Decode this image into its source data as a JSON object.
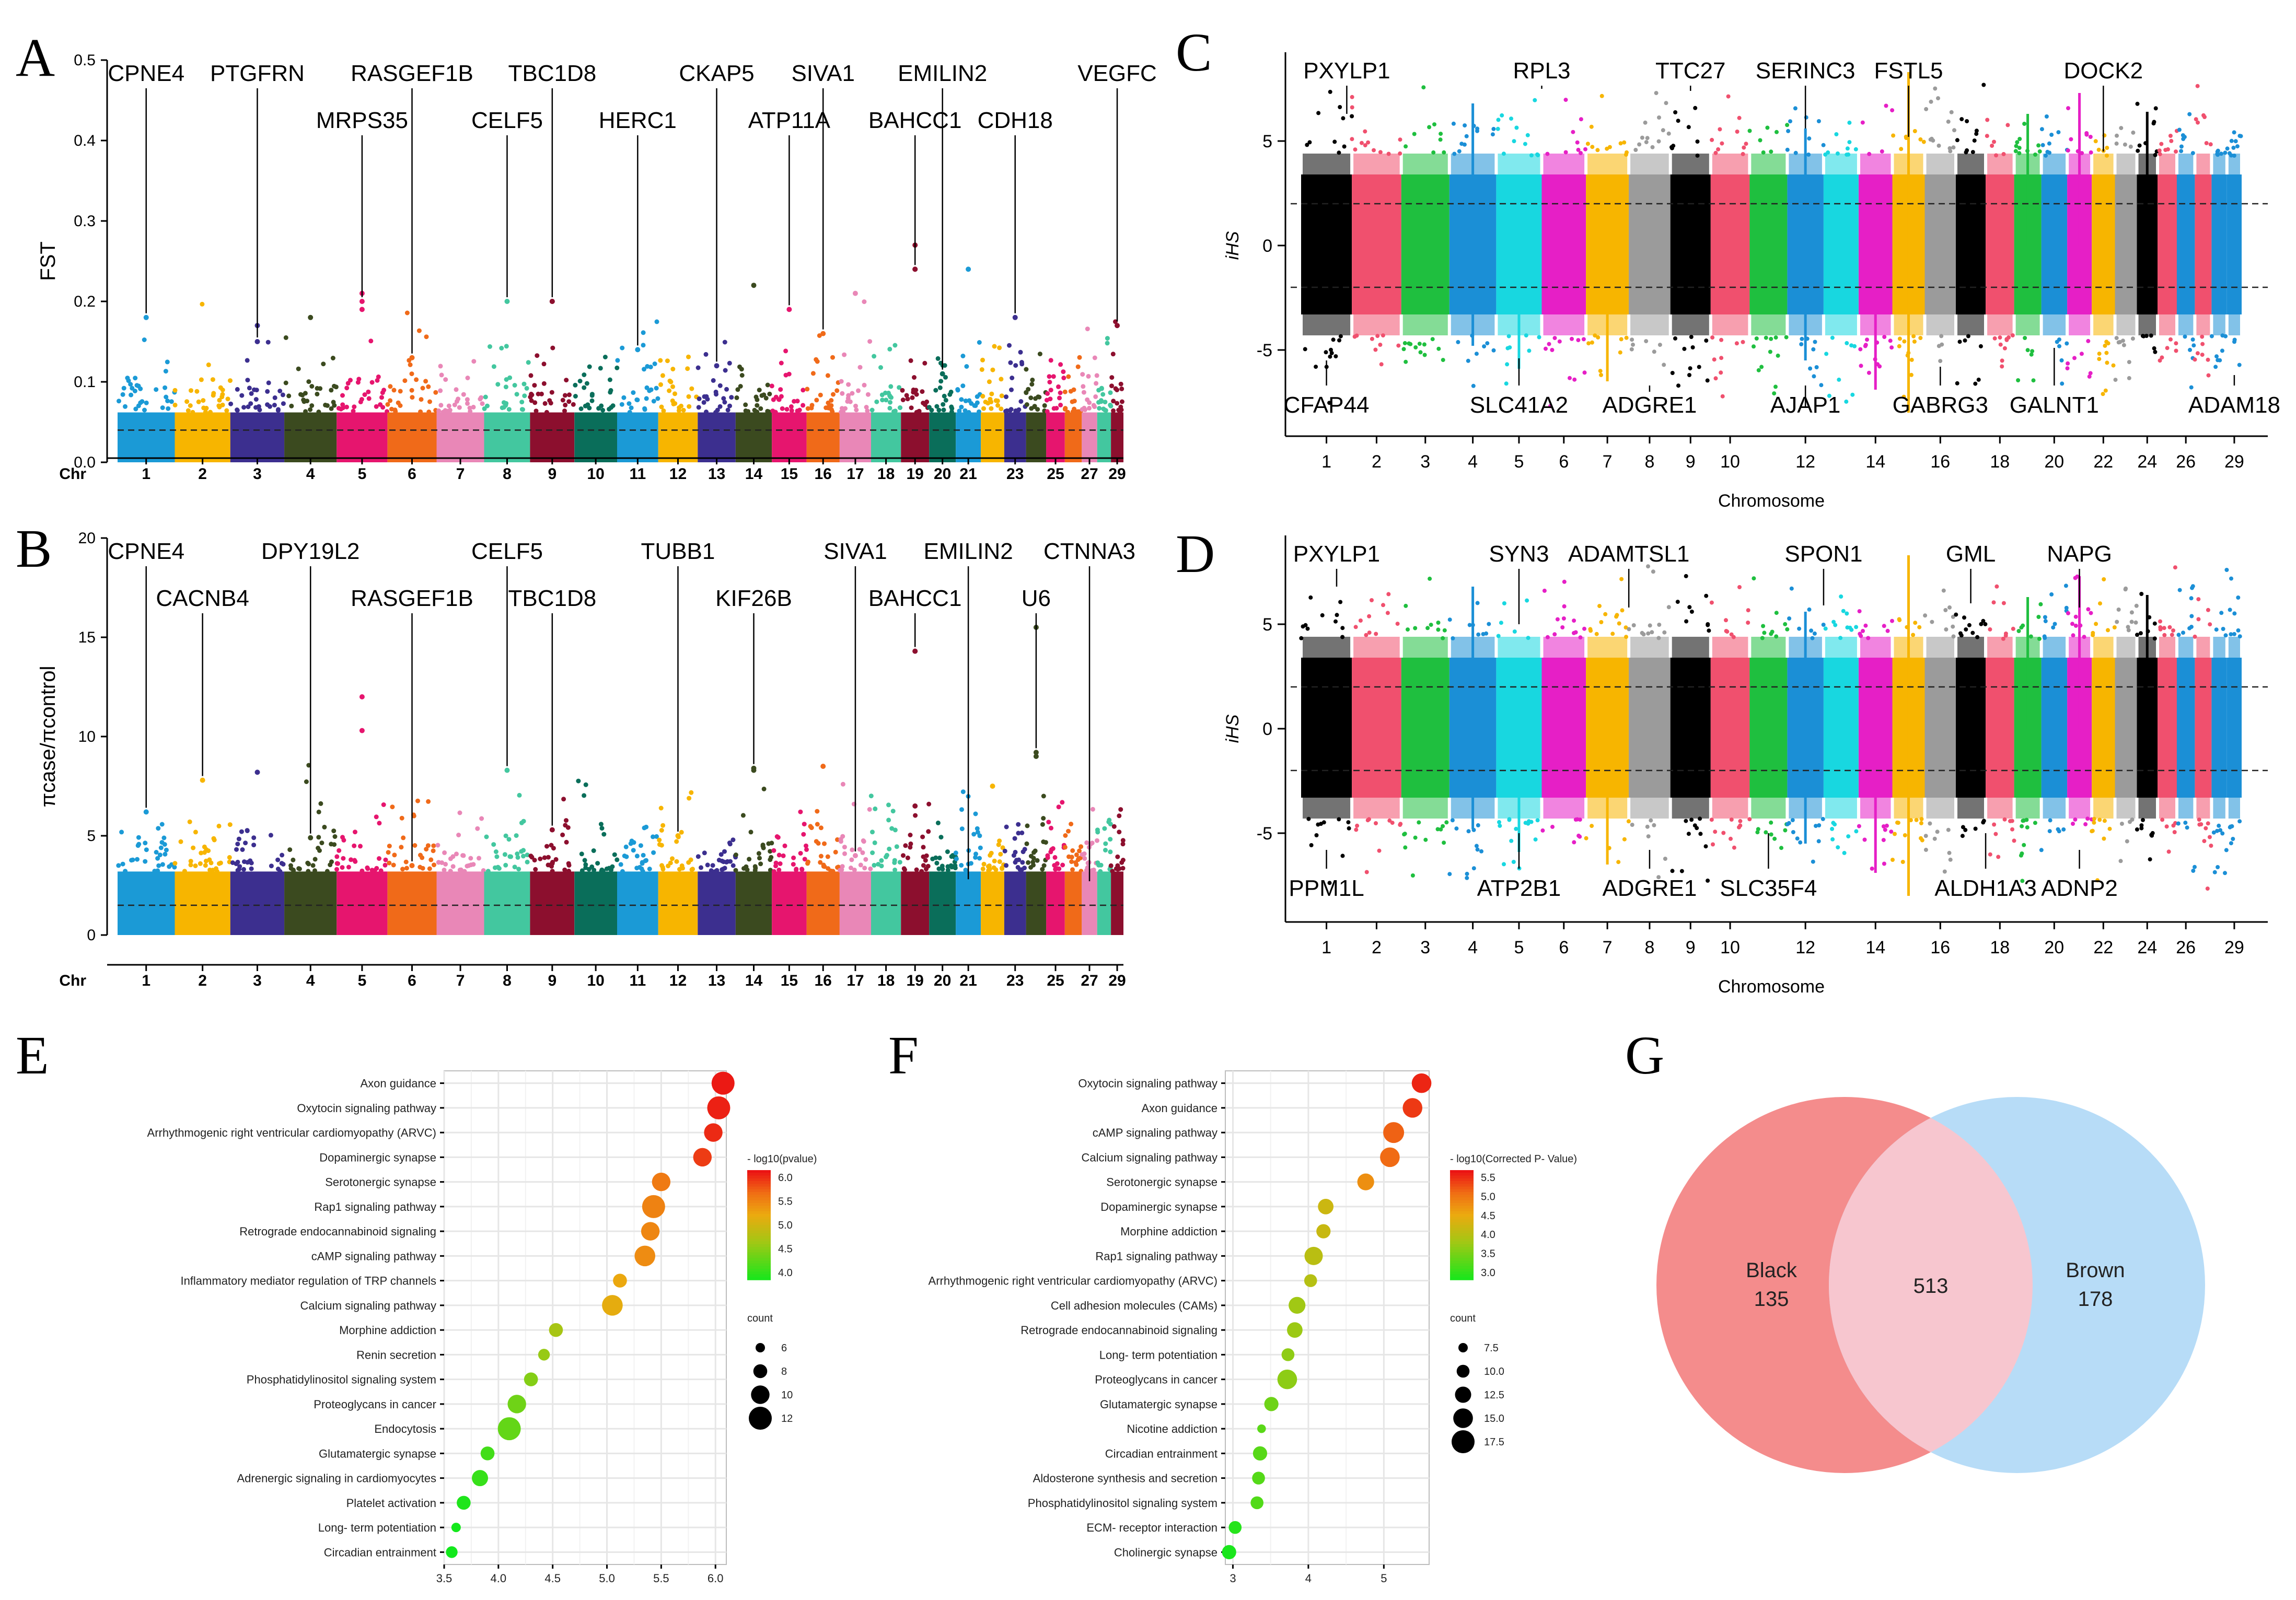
{
  "panels": {
    "A": "A",
    "B": "B",
    "C": "C",
    "D": "D",
    "E": "E",
    "F": "F",
    "G": "G"
  },
  "chart_data": [
    {
      "id": "A",
      "type": "scatter",
      "subtype": "manhattan",
      "ylabel": "FST",
      "xlabel_prefix": "Chr",
      "ylim": [
        0,
        0.5
      ],
      "yticks": [
        0.0,
        0.1,
        0.2,
        0.3,
        0.4,
        0.5
      ],
      "ytick_labels": [
        "0.0",
        "0.1",
        "0.2",
        "0.3",
        "0.4",
        "0.5"
      ],
      "threshold": 0.04,
      "chromosomes": [
        "1",
        "2",
        "3",
        "4",
        "5",
        "6",
        "7",
        "8",
        "9",
        "10",
        "11",
        "12",
        "13",
        "14",
        "15",
        "16",
        "17",
        "18",
        "19",
        "20",
        "21",
        "23",
        "25",
        "27",
        "29"
      ],
      "genes": [
        {
          "name": "CPNE4",
          "chr": 1,
          "value": 0.18,
          "row": 1
        },
        {
          "name": "PTGFRN",
          "chr": 3,
          "value": 0.15,
          "row": 1
        },
        {
          "name": "MRPS35",
          "chr": 5,
          "value": 0.2,
          "row": 2
        },
        {
          "name": "RASGEF1B",
          "chr": 6,
          "value": 0.13,
          "row": 1
        },
        {
          "name": "CELF5",
          "chr": 8,
          "value": 0.2,
          "row": 2
        },
        {
          "name": "TBC1D8",
          "chr": 9,
          "value": 0.2,
          "row": 1
        },
        {
          "name": "HERC1",
          "chr": 11,
          "value": 0.14,
          "row": 2
        },
        {
          "name": "CKAP5",
          "chr": 13,
          "value": 0.12,
          "row": 1
        },
        {
          "name": "ATP11A",
          "chr": 15,
          "value": 0.19,
          "row": 2
        },
        {
          "name": "SIVA1",
          "chr": 16,
          "value": 0.16,
          "row": 1
        },
        {
          "name": "BAHCC1",
          "chr": 19,
          "value": 0.24,
          "row": 2
        },
        {
          "name": "EMILIN2",
          "chr": 20,
          "value": 0.11,
          "row": 1
        },
        {
          "name": "CDH18",
          "chr": 23,
          "value": 0.18,
          "row": 2
        },
        {
          "name": "VEGFC",
          "chr": 29,
          "value": 0.17,
          "row": 1
        }
      ]
    },
    {
      "id": "B",
      "type": "scatter",
      "subtype": "manhattan",
      "ylabel": "πcase/πcontrol",
      "xlabel_prefix": "Chr",
      "ylim": [
        0,
        20
      ],
      "yticks": [
        0,
        5,
        10,
        15,
        20
      ],
      "ytick_labels": [
        "0",
        "5",
        "10",
        "15",
        "20"
      ],
      "threshold": 1.5,
      "chromosomes": [
        "1",
        "2",
        "3",
        "4",
        "5",
        "6",
        "7",
        "8",
        "9",
        "10",
        "11",
        "12",
        "13",
        "14",
        "15",
        "16",
        "17",
        "18",
        "19",
        "20",
        "21",
        "23",
        "25",
        "27",
        "29"
      ],
      "genes": [
        {
          "name": "CPNE4",
          "chr": 1,
          "value": 6.2,
          "row": 1
        },
        {
          "name": "CACNB4",
          "chr": 2,
          "value": 7.8,
          "row": 2
        },
        {
          "name": "DPY19L2",
          "chr": 4,
          "value": 4.9,
          "row": 1
        },
        {
          "name": "RASGEF1B",
          "chr": 6,
          "value": 3.5,
          "row": 2
        },
        {
          "name": "CELF5",
          "chr": 8,
          "value": 8.3,
          "row": 1
        },
        {
          "name": "TBC1D8",
          "chr": 9,
          "value": 5.3,
          "row": 2
        },
        {
          "name": "TUBB1",
          "chr": 12,
          "value": 5.0,
          "row": 1
        },
        {
          "name": "KIF26B",
          "chr": 14,
          "value": 8.4,
          "row": 2
        },
        {
          "name": "SIVA1",
          "chr": 17,
          "value": 4.0,
          "row": 1
        },
        {
          "name": "BAHCC1",
          "chr": 19,
          "value": 14.3,
          "row": 2
        },
        {
          "name": "EMILIN2",
          "chr": 21,
          "value": 2.6,
          "row": 1
        },
        {
          "name": "U6",
          "chr": 24,
          "value": 9.2,
          "row": 2
        },
        {
          "name": "CTNNA3",
          "chr": 27,
          "value": 2.5,
          "row": 1
        }
      ]
    },
    {
      "id": "C",
      "type": "scatter",
      "subtype": "manhattan-ihs",
      "ylabel": "iHS",
      "xlabel": "Chromosome",
      "ylim": [
        -8.5,
        9
      ],
      "yticks": [
        -5,
        0,
        5
      ],
      "ytick_labels": [
        "-5",
        "0",
        "5"
      ],
      "thresholds": [
        2,
        -2
      ],
      "chromosomes": [
        "1",
        "2",
        "3",
        "4",
        "5",
        "6",
        "7",
        "8",
        "9",
        "10",
        "12",
        "14",
        "16",
        "18",
        "20",
        "22",
        "24",
        "26",
        "29"
      ],
      "genes_top": [
        {
          "name": "PXYLP1",
          "chr": 1.4,
          "value": 6.3
        },
        {
          "name": "RPL3",
          "chr": 5.5,
          "value": 7.5
        },
        {
          "name": "TTC27",
          "chr": 9,
          "value": 7.4
        },
        {
          "name": "SERINC3",
          "chr": 12,
          "value": 5.6
        },
        {
          "name": "FSTL5",
          "chr": 15,
          "value": 5.2
        },
        {
          "name": "DOCK2",
          "chr": 22,
          "value": 4.5
        }
      ],
      "genes_bottom": [
        {
          "name": "CFAP44",
          "chr": 1,
          "value": -5.5
        },
        {
          "name": "SLC41A2",
          "chr": 5,
          "value": -5.4
        },
        {
          "name": "ADGRE1",
          "chr": 8,
          "value": -7.0
        },
        {
          "name": "AJAP1",
          "chr": 12,
          "value": -7.7
        },
        {
          "name": "GABRG3",
          "chr": 16,
          "value": -5.8
        },
        {
          "name": "GALNT1",
          "chr": 20,
          "value": -4.9
        },
        {
          "name": "ADAM18",
          "chr": 29,
          "value": -6.2
        }
      ]
    },
    {
      "id": "D",
      "type": "scatter",
      "subtype": "manhattan-ihs",
      "ylabel": "iHS",
      "xlabel": "Chromosome",
      "ylim": [
        -8.5,
        9
      ],
      "yticks": [
        -5,
        0,
        5
      ],
      "ytick_labels": [
        "-5",
        "0",
        "5"
      ],
      "thresholds": [
        2,
        -2
      ],
      "chromosomes": [
        "1",
        "2",
        "3",
        "4",
        "5",
        "6",
        "7",
        "8",
        "9",
        "10",
        "12",
        "14",
        "16",
        "18",
        "20",
        "22",
        "24",
        "26",
        "29"
      ],
      "genes_top": [
        {
          "name": "PXYLP1",
          "chr": 1.2,
          "value": 6.8
        },
        {
          "name": "SYN3",
          "chr": 5,
          "value": 5.0
        },
        {
          "name": "ADAMTSL1",
          "chr": 7.5,
          "value": 5.8
        },
        {
          "name": "SPON1",
          "chr": 12.5,
          "value": 5.9
        },
        {
          "name": "GML",
          "chr": 17,
          "value": 6.0
        },
        {
          "name": "NAPG",
          "chr": 21,
          "value": 5.8
        }
      ],
      "genes_bottom": [
        {
          "name": "PPM1L",
          "chr": 1,
          "value": -5.8
        },
        {
          "name": "ATP2B1",
          "chr": 5,
          "value": -5.0
        },
        {
          "name": "ADGRE1",
          "chr": 8,
          "value": -5.8
        },
        {
          "name": "SLC35F4",
          "chr": 11,
          "value": -5.0
        },
        {
          "name": "ALDH1A3",
          "chr": 17.5,
          "value": -5.0
        },
        {
          "name": "ADNP2",
          "chr": 21,
          "value": -5.8
        }
      ]
    },
    {
      "id": "E",
      "type": "scatter",
      "subtype": "dotplot",
      "x_range": [
        3.5,
        6.1
      ],
      "xticks": [
        3.5,
        4.0,
        4.5,
        5.0,
        5.5,
        6.0
      ],
      "xtick_labels": [
        "3.5",
        "4.0",
        "4.5",
        "5.0",
        "5.5",
        "6.0"
      ],
      "legend_color_title": "- log10(pvalue)",
      "legend_color_ticks": [
        "6.0",
        "5.5",
        "5.0",
        "4.5",
        "4.0"
      ],
      "legend_color_range": [
        3.6,
        6.1
      ],
      "legend_size_title": "count",
      "legend_size_values": [
        6,
        8,
        10,
        12
      ],
      "legend_size_labels": [
        "6",
        "8",
        "10",
        "12"
      ],
      "pathways": [
        "Axon guidance",
        "Oxytocin signaling pathway",
        "Arrhythmogenic right ventricular cardiomyopathy (ARVC)",
        "Dopaminergic synapse",
        "Serotonergic synapse",
        "Rap1 signaling pathway",
        "Retrograde endocannabinoid signaling",
        "cAMP signaling pathway",
        "Inflammatory mediator regulation of TRP channels",
        "Calcium signaling pathway",
        "Morphine addiction",
        "Renin secretion",
        "Phosphatidylinositol signaling system",
        "Proteoglycans in cancer",
        "Endocytosis",
        "Glutamatergic synapse",
        "Adrenergic signaling in cardiomyocytes",
        "Platelet activation",
        "Long- term potentiation",
        "Circadian entrainment"
      ],
      "values": [
        6.07,
        6.03,
        5.98,
        5.88,
        5.5,
        5.43,
        5.4,
        5.35,
        5.12,
        5.05,
        4.53,
        4.42,
        4.3,
        4.17,
        4.1,
        3.9,
        3.83,
        3.68,
        3.61,
        3.57
      ],
      "counts": [
        12,
        12,
        10,
        10,
        10,
        12,
        10,
        11,
        8,
        11,
        8,
        7,
        8,
        10,
        12,
        8,
        9,
        8,
        6,
        7
      ]
    },
    {
      "id": "F",
      "type": "scatter",
      "subtype": "dotplot",
      "x_range": [
        2.9,
        5.6
      ],
      "xticks": [
        3,
        4,
        5
      ],
      "xtick_labels": [
        "3",
        "4",
        "5"
      ],
      "legend_color_title": "- log10(Corrected P- Value)",
      "legend_color_ticks": [
        "5.5",
        "5.0",
        "4.5",
        "4.0",
        "3.5",
        "3.0"
      ],
      "legend_color_range": [
        2.9,
        5.6
      ],
      "legend_size_title": "count",
      "legend_size_values": [
        7.5,
        10.0,
        12.5,
        15.0,
        17.5
      ],
      "legend_size_labels": [
        "7.5",
        "10.0",
        "12.5",
        "15.0",
        "17.5"
      ],
      "pathways": [
        "Oxytocin signaling pathway",
        "Axon guidance",
        "cAMP signaling pathway",
        "Calcium signaling pathway",
        "Serotonergic synapse",
        "Dopaminergic synapse",
        "Morphine addiction",
        "Rap1 signaling pathway",
        "Arrhythmogenic right ventricular cardiomyopathy (ARVC)",
        "Cell adhesion molecules (CAMs)",
        "Retrograde endocannabinoid signaling",
        "Long- term potentiation",
        "Proteoglycans in cancer",
        "Glutamatergic synapse",
        "Nicotine addiction",
        "Circadian entrainment",
        "Aldosterone synthesis and secretion",
        "Phosphatidylinositol signaling system",
        "ECM- receptor interaction",
        "Cholinergic synapse"
      ],
      "values": [
        5.5,
        5.38,
        5.13,
        5.08,
        4.76,
        4.23,
        4.2,
        4.07,
        4.03,
        3.85,
        3.82,
        3.73,
        3.72,
        3.51,
        3.38,
        3.36,
        3.34,
        3.32,
        3.03,
        2.95
      ],
      "counts": [
        15,
        15,
        16,
        15,
        13,
        12,
        11,
        14,
        10,
        13,
        12,
        10,
        15,
        11,
        7,
        11,
        10,
        10,
        10,
        11
      ]
    },
    {
      "id": "G",
      "type": "venn",
      "sets": [
        {
          "name": "Black",
          "only": 135,
          "color": "#f48c8c"
        },
        {
          "name": "Brown",
          "only": 178,
          "color": "#b7dcf7"
        }
      ],
      "intersection": 513,
      "labels": {
        "black_name": "Black",
        "black_count": "135",
        "brown_name": "Brown",
        "brown_count": "178",
        "both_count": "513"
      }
    }
  ]
}
